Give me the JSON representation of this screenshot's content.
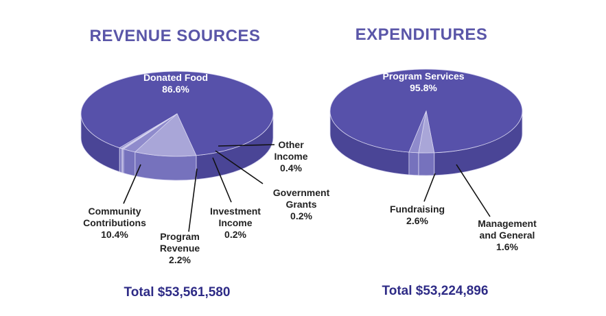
{
  "chart_data": [
    {
      "type": "pie",
      "title": "REVENUE SOURCES",
      "total_label": "Total $53,561,580",
      "slices": [
        {
          "name": "Donated Food",
          "value": 86.6,
          "label_lines": [
            "Donated Food",
            "86.6%"
          ]
        },
        {
          "name": "Community Contributions",
          "value": 10.4,
          "label_lines": [
            "Community",
            "Contributions",
            "10.4%"
          ]
        },
        {
          "name": "Program Revenue",
          "value": 2.2,
          "label_lines": [
            "Program",
            "Revenue",
            "2.2%"
          ]
        },
        {
          "name": "Investment Income",
          "value": 0.2,
          "label_lines": [
            "Investment",
            "Income",
            "0.2%"
          ]
        },
        {
          "name": "Government Grants",
          "value": 0.2,
          "label_lines": [
            "Government",
            "Grants",
            "0.2%"
          ]
        },
        {
          "name": "Other Income",
          "value": 0.4,
          "label_lines": [
            "Other",
            "Income",
            "0.4%"
          ]
        }
      ]
    },
    {
      "type": "pie",
      "title": "EXPENDITURES",
      "total_label": "Total $53,224,896",
      "slices": [
        {
          "name": "Program Services",
          "value": 95.8,
          "label_lines": [
            "Program Services",
            "95.8%"
          ]
        },
        {
          "name": "Fundraising",
          "value": 2.6,
          "label_lines": [
            "Fundraising",
            "2.6%"
          ]
        },
        {
          "name": "Management and General",
          "value": 1.6,
          "label_lines": [
            "Management",
            "and General",
            "1.6%"
          ]
        }
      ]
    }
  ],
  "colors": {
    "title": "#5a56a8",
    "total": "#2e2b86",
    "main_top": "#5751aa",
    "main_side": "#4a4596",
    "light_top": "#a9a6d8",
    "mid_top": "#8f8bcc",
    "light_side": "#7672bd",
    "outline": "#d8d6f0"
  }
}
